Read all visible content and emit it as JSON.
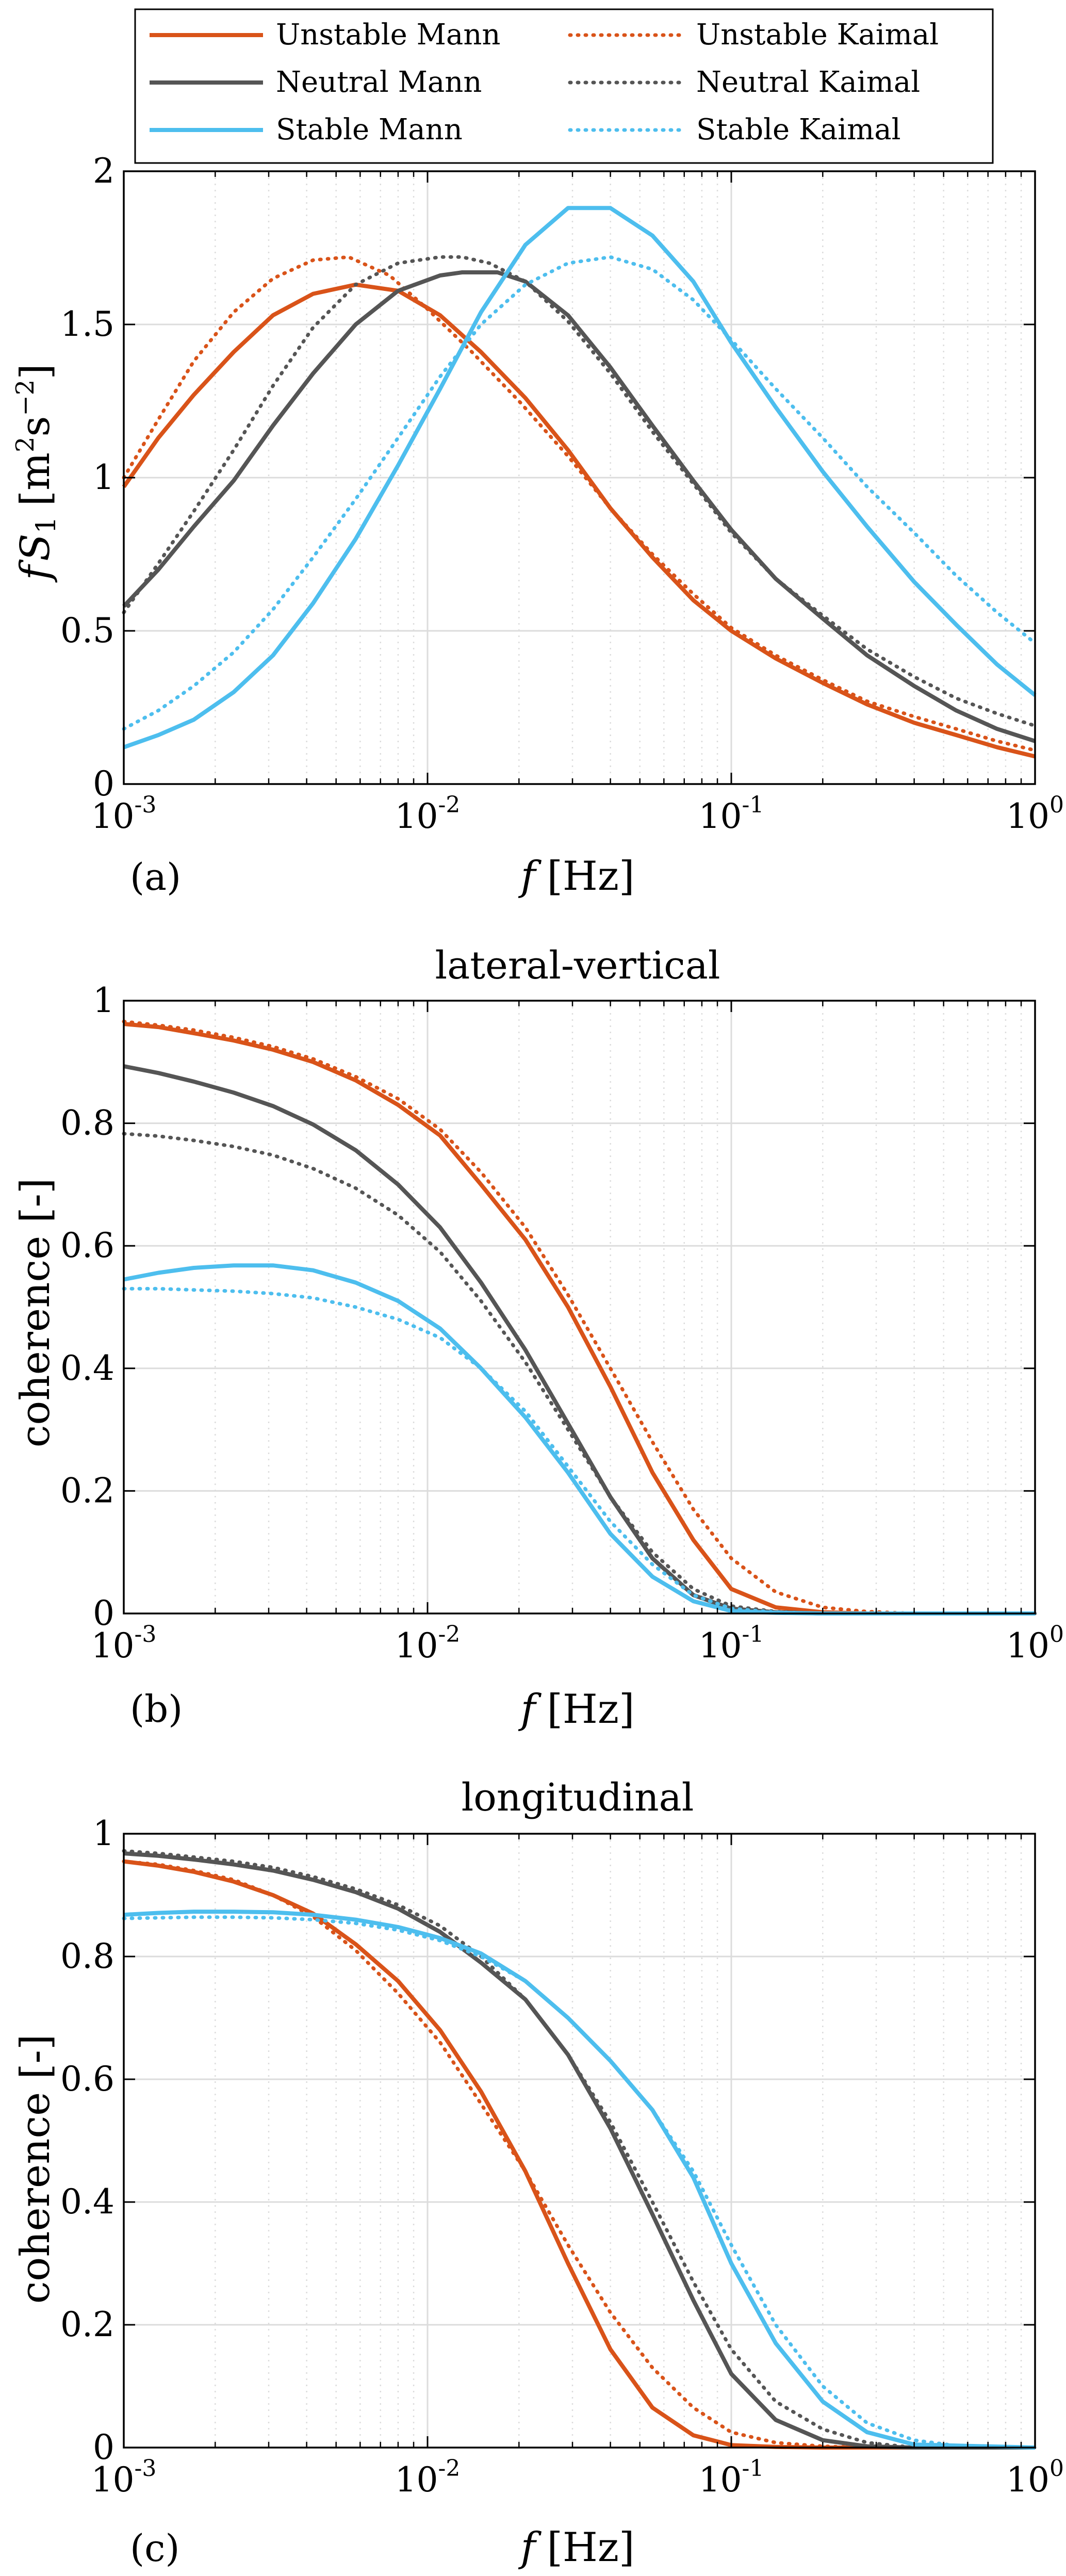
{
  "colors": {
    "unstable": "#d95319",
    "neutral": "#555555",
    "stable": "#4dbeee",
    "grid": "#dcdcdc",
    "axis": "#000000"
  },
  "legend": {
    "entries": [
      {
        "key": "unstable",
        "style": "solid",
        "label": "Unstable Mann"
      },
      {
        "key": "unstable",
        "style": "dotted",
        "label": "Unstable Kaimal"
      },
      {
        "key": "neutral",
        "style": "solid",
        "label": "Neutral Mann"
      },
      {
        "key": "neutral",
        "style": "dotted",
        "label": "Neutral Kaimal"
      },
      {
        "key": "stable",
        "style": "solid",
        "label": "Stable Mann"
      },
      {
        "key": "stable",
        "style": "dotted",
        "label": "Stable Kaimal"
      }
    ]
  },
  "chart_data": [
    {
      "id": "a",
      "type": "line",
      "title": "",
      "panel_label": "(a)",
      "xlabel": "f [Hz]",
      "ylabel": "fS1 [m2s−2]",
      "xscale": "log",
      "xlim": [
        0.001,
        1
      ],
      "ylim": [
        0,
        2
      ],
      "yticks": [
        0,
        0.5,
        1,
        1.5,
        2
      ],
      "ytick_labels": [
        "0",
        "0.5",
        "1",
        "1.5",
        "2"
      ],
      "xtick_exponents": [
        "-3",
        "-2",
        "-1",
        "0"
      ],
      "series": [
        {
          "name": "Unstable Mann",
          "key": "unstable",
          "style": "solid",
          "x": [
            0.001,
            0.0013,
            0.0017,
            0.0023,
            0.0031,
            0.0042,
            0.0058,
            0.008,
            0.011,
            0.015,
            0.021,
            0.029,
            0.04,
            0.055,
            0.075,
            0.1,
            0.14,
            0.2,
            0.28,
            0.4,
            0.55,
            0.75,
            1.0
          ],
          "y": [
            0.97,
            1.13,
            1.27,
            1.41,
            1.53,
            1.6,
            1.63,
            1.61,
            1.53,
            1.41,
            1.26,
            1.09,
            0.9,
            0.74,
            0.6,
            0.5,
            0.41,
            0.33,
            0.26,
            0.2,
            0.16,
            0.12,
            0.09
          ]
        },
        {
          "name": "Unstable Kaimal",
          "key": "unstable",
          "style": "dotted",
          "x": [
            0.001,
            0.0013,
            0.0017,
            0.0023,
            0.0031,
            0.0042,
            0.0055,
            0.0075,
            0.01,
            0.014,
            0.02,
            0.029,
            0.04,
            0.055,
            0.075,
            0.1,
            0.14,
            0.2,
            0.28,
            0.4,
            0.55,
            0.75,
            1.0
          ],
          "y": [
            1.0,
            1.19,
            1.38,
            1.54,
            1.65,
            1.71,
            1.72,
            1.66,
            1.55,
            1.41,
            1.25,
            1.07,
            0.9,
            0.75,
            0.62,
            0.51,
            0.42,
            0.34,
            0.27,
            0.22,
            0.18,
            0.14,
            0.11
          ]
        },
        {
          "name": "Neutral Mann",
          "key": "neutral",
          "style": "solid",
          "x": [
            0.001,
            0.0013,
            0.0017,
            0.0023,
            0.0031,
            0.0042,
            0.0058,
            0.008,
            0.011,
            0.013,
            0.017,
            0.021,
            0.029,
            0.04,
            0.055,
            0.075,
            0.1,
            0.14,
            0.2,
            0.28,
            0.4,
            0.55,
            0.75,
            1.0
          ],
          "y": [
            0.58,
            0.7,
            0.84,
            0.99,
            1.17,
            1.34,
            1.5,
            1.61,
            1.66,
            1.67,
            1.67,
            1.64,
            1.53,
            1.36,
            1.17,
            0.99,
            0.83,
            0.67,
            0.54,
            0.42,
            0.32,
            0.24,
            0.18,
            0.14
          ]
        },
        {
          "name": "Neutral Kaimal",
          "key": "neutral",
          "style": "dotted",
          "x": [
            0.001,
            0.0013,
            0.0017,
            0.0023,
            0.0031,
            0.0042,
            0.0058,
            0.008,
            0.011,
            0.013,
            0.016,
            0.021,
            0.029,
            0.04,
            0.055,
            0.075,
            0.1,
            0.14,
            0.2,
            0.28,
            0.4,
            0.55,
            0.75,
            1.0
          ],
          "y": [
            0.56,
            0.72,
            0.89,
            1.09,
            1.3,
            1.49,
            1.63,
            1.7,
            1.72,
            1.72,
            1.7,
            1.64,
            1.51,
            1.34,
            1.15,
            0.98,
            0.82,
            0.67,
            0.55,
            0.44,
            0.35,
            0.28,
            0.23,
            0.19
          ]
        },
        {
          "name": "Stable Mann",
          "key": "stable",
          "style": "solid",
          "x": [
            0.001,
            0.0013,
            0.0017,
            0.0023,
            0.0031,
            0.0042,
            0.0058,
            0.008,
            0.011,
            0.015,
            0.021,
            0.029,
            0.04,
            0.055,
            0.075,
            0.1,
            0.14,
            0.2,
            0.28,
            0.4,
            0.55,
            0.75,
            1.0
          ],
          "y": [
            0.12,
            0.16,
            0.21,
            0.3,
            0.42,
            0.59,
            0.8,
            1.04,
            1.29,
            1.54,
            1.76,
            1.88,
            1.88,
            1.79,
            1.64,
            1.44,
            1.23,
            1.02,
            0.84,
            0.66,
            0.52,
            0.39,
            0.29
          ]
        },
        {
          "name": "Stable Kaimal",
          "key": "stable",
          "style": "dotted",
          "x": [
            0.001,
            0.0013,
            0.0017,
            0.0023,
            0.0031,
            0.0042,
            0.0058,
            0.008,
            0.011,
            0.015,
            0.021,
            0.029,
            0.04,
            0.055,
            0.075,
            0.1,
            0.14,
            0.2,
            0.28,
            0.4,
            0.55,
            0.75,
            1.0
          ],
          "y": [
            0.18,
            0.24,
            0.32,
            0.43,
            0.57,
            0.74,
            0.93,
            1.13,
            1.33,
            1.5,
            1.63,
            1.7,
            1.72,
            1.68,
            1.58,
            1.45,
            1.29,
            1.13,
            0.97,
            0.82,
            0.68,
            0.56,
            0.46
          ]
        }
      ]
    },
    {
      "id": "b",
      "type": "line",
      "title": "lateral-vertical",
      "panel_label": "(b)",
      "xlabel": "f [Hz]",
      "ylabel": "coherence [-]",
      "xscale": "log",
      "xlim": [
        0.001,
        1
      ],
      "ylim": [
        0,
        1
      ],
      "yticks": [
        0,
        0.2,
        0.4,
        0.6,
        0.8,
        1
      ],
      "ytick_labels": [
        "0",
        "0.2",
        "0.4",
        "0.6",
        "0.8",
        "1"
      ],
      "xtick_exponents": [
        "-3",
        "-2",
        "-1",
        "0"
      ],
      "series": [
        {
          "name": "Unstable Mann",
          "key": "unstable",
          "style": "solid",
          "x": [
            0.001,
            0.0013,
            0.0017,
            0.0023,
            0.0031,
            0.0042,
            0.0058,
            0.008,
            0.011,
            0.015,
            0.021,
            0.029,
            0.04,
            0.055,
            0.075,
            0.1,
            0.14,
            0.2,
            0.28,
            0.4,
            1.0
          ],
          "y": [
            0.962,
            0.957,
            0.947,
            0.935,
            0.92,
            0.9,
            0.87,
            0.83,
            0.78,
            0.7,
            0.61,
            0.5,
            0.37,
            0.23,
            0.12,
            0.04,
            0.01,
            0.002,
            0.0,
            0.0,
            0.0
          ]
        },
        {
          "name": "Unstable Kaimal",
          "key": "unstable",
          "style": "dotted",
          "x": [
            0.001,
            0.0013,
            0.0017,
            0.0023,
            0.0031,
            0.0042,
            0.0058,
            0.008,
            0.011,
            0.015,
            0.021,
            0.029,
            0.04,
            0.055,
            0.075,
            0.1,
            0.14,
            0.2,
            0.28,
            0.4,
            1.0
          ],
          "y": [
            0.966,
            0.96,
            0.952,
            0.94,
            0.925,
            0.905,
            0.876,
            0.84,
            0.79,
            0.72,
            0.63,
            0.52,
            0.4,
            0.28,
            0.17,
            0.09,
            0.035,
            0.01,
            0.003,
            0.0,
            0.0
          ]
        },
        {
          "name": "Neutral Mann",
          "key": "neutral",
          "style": "solid",
          "x": [
            0.001,
            0.0013,
            0.0017,
            0.0023,
            0.0031,
            0.0042,
            0.0058,
            0.008,
            0.011,
            0.015,
            0.021,
            0.029,
            0.04,
            0.055,
            0.075,
            0.1,
            0.14,
            0.2,
            1.0
          ],
          "y": [
            0.893,
            0.882,
            0.868,
            0.85,
            0.828,
            0.798,
            0.756,
            0.7,
            0.63,
            0.54,
            0.43,
            0.31,
            0.19,
            0.09,
            0.03,
            0.008,
            0.002,
            0.0,
            0.0
          ]
        },
        {
          "name": "Neutral Kaimal",
          "key": "neutral",
          "style": "dotted",
          "x": [
            0.001,
            0.0013,
            0.0017,
            0.0023,
            0.0031,
            0.0042,
            0.0058,
            0.008,
            0.011,
            0.015,
            0.021,
            0.029,
            0.04,
            0.055,
            0.075,
            0.1,
            0.14,
            0.2,
            1.0
          ],
          "y": [
            0.783,
            0.779,
            0.772,
            0.762,
            0.748,
            0.726,
            0.694,
            0.65,
            0.59,
            0.51,
            0.41,
            0.3,
            0.19,
            0.1,
            0.04,
            0.012,
            0.003,
            0.0,
            0.0
          ]
        },
        {
          "name": "Stable Mann",
          "key": "stable",
          "style": "solid",
          "x": [
            0.001,
            0.0013,
            0.0017,
            0.0023,
            0.0031,
            0.0042,
            0.0058,
            0.008,
            0.011,
            0.015,
            0.021,
            0.029,
            0.04,
            0.055,
            0.075,
            0.1,
            0.14,
            0.2,
            1.0
          ],
          "y": [
            0.545,
            0.556,
            0.564,
            0.568,
            0.568,
            0.56,
            0.54,
            0.51,
            0.465,
            0.4,
            0.32,
            0.23,
            0.13,
            0.06,
            0.02,
            0.004,
            0.001,
            0.0,
            0.0
          ]
        },
        {
          "name": "Stable Kaimal",
          "key": "stable",
          "style": "dotted",
          "x": [
            0.001,
            0.0013,
            0.0017,
            0.0023,
            0.0031,
            0.0042,
            0.0058,
            0.008,
            0.011,
            0.015,
            0.021,
            0.029,
            0.04,
            0.055,
            0.075,
            0.1,
            0.14,
            0.2,
            1.0
          ],
          "y": [
            0.53,
            0.53,
            0.528,
            0.526,
            0.522,
            0.515,
            0.5,
            0.48,
            0.45,
            0.4,
            0.33,
            0.24,
            0.15,
            0.08,
            0.03,
            0.008,
            0.002,
            0.0,
            0.0
          ]
        }
      ]
    },
    {
      "id": "c",
      "type": "line",
      "title": "longitudinal",
      "panel_label": "(c)",
      "xlabel": "f [Hz]",
      "ylabel": "coherence [-]",
      "xscale": "log",
      "xlim": [
        0.001,
        1
      ],
      "ylim": [
        0,
        1
      ],
      "yticks": [
        0,
        0.2,
        0.4,
        0.6,
        0.8,
        1
      ],
      "ytick_labels": [
        "0",
        "0.2",
        "0.4",
        "0.6",
        "0.8",
        "1"
      ],
      "xtick_exponents": [
        "-3",
        "-2",
        "-1",
        "0"
      ],
      "series": [
        {
          "name": "Unstable Mann",
          "key": "unstable",
          "style": "solid",
          "x": [
            0.001,
            0.0013,
            0.0017,
            0.0023,
            0.0031,
            0.0042,
            0.0058,
            0.008,
            0.011,
            0.015,
            0.021,
            0.029,
            0.04,
            0.055,
            0.075,
            0.1,
            0.14,
            0.2,
            1.0
          ],
          "y": [
            0.955,
            0.948,
            0.938,
            0.922,
            0.9,
            0.87,
            0.82,
            0.76,
            0.68,
            0.58,
            0.45,
            0.3,
            0.16,
            0.065,
            0.02,
            0.004,
            0.001,
            0.0,
            0.0
          ]
        },
        {
          "name": "Unstable Kaimal",
          "key": "unstable",
          "style": "dotted",
          "x": [
            0.001,
            0.0013,
            0.0017,
            0.0023,
            0.0031,
            0.0042,
            0.0058,
            0.008,
            0.011,
            0.015,
            0.021,
            0.029,
            0.04,
            0.055,
            0.075,
            0.1,
            0.14,
            0.2,
            0.28,
            1.0
          ],
          "y": [
            0.955,
            0.95,
            0.94,
            0.925,
            0.9,
            0.865,
            0.81,
            0.74,
            0.66,
            0.56,
            0.45,
            0.33,
            0.22,
            0.13,
            0.065,
            0.025,
            0.008,
            0.002,
            0.0,
            0.0
          ]
        },
        {
          "name": "Neutral Mann",
          "key": "neutral",
          "style": "solid",
          "x": [
            0.001,
            0.0013,
            0.0017,
            0.0023,
            0.0031,
            0.0042,
            0.0058,
            0.008,
            0.011,
            0.015,
            0.021,
            0.029,
            0.04,
            0.055,
            0.075,
            0.1,
            0.14,
            0.2,
            0.28,
            0.4,
            1.0
          ],
          "y": [
            0.968,
            0.964,
            0.958,
            0.95,
            0.94,
            0.925,
            0.905,
            0.878,
            0.84,
            0.79,
            0.73,
            0.64,
            0.52,
            0.38,
            0.24,
            0.12,
            0.045,
            0.012,
            0.002,
            0.0,
            0.0
          ]
        },
        {
          "name": "Neutral Kaimal",
          "key": "neutral",
          "style": "dotted",
          "x": [
            0.001,
            0.0013,
            0.0017,
            0.0023,
            0.0031,
            0.0042,
            0.0058,
            0.008,
            0.011,
            0.015,
            0.021,
            0.029,
            0.04,
            0.055,
            0.075,
            0.1,
            0.14,
            0.2,
            0.28,
            0.4,
            1.0
          ],
          "y": [
            0.972,
            0.968,
            0.962,
            0.955,
            0.945,
            0.93,
            0.91,
            0.884,
            0.85,
            0.8,
            0.73,
            0.64,
            0.53,
            0.4,
            0.27,
            0.16,
            0.075,
            0.03,
            0.008,
            0.0,
            0.0
          ]
        },
        {
          "name": "Stable Mann",
          "key": "stable",
          "style": "solid",
          "x": [
            0.001,
            0.0013,
            0.0017,
            0.0023,
            0.0031,
            0.0042,
            0.0058,
            0.008,
            0.011,
            0.015,
            0.021,
            0.029,
            0.04,
            0.055,
            0.075,
            0.1,
            0.14,
            0.2,
            0.28,
            0.4,
            1.0
          ],
          "y": [
            0.868,
            0.871,
            0.873,
            0.873,
            0.872,
            0.868,
            0.86,
            0.848,
            0.83,
            0.805,
            0.76,
            0.7,
            0.63,
            0.55,
            0.44,
            0.3,
            0.17,
            0.075,
            0.025,
            0.005,
            0.0
          ]
        },
        {
          "name": "Stable Kaimal",
          "key": "stable",
          "style": "dotted",
          "x": [
            0.001,
            0.0013,
            0.0017,
            0.0023,
            0.0031,
            0.0042,
            0.0058,
            0.008,
            0.011,
            0.015,
            0.021,
            0.029,
            0.04,
            0.055,
            0.075,
            0.1,
            0.14,
            0.2,
            0.28,
            0.4,
            0.55,
            1.0
          ],
          "y": [
            0.862,
            0.863,
            0.864,
            0.864,
            0.863,
            0.86,
            0.854,
            0.843,
            0.826,
            0.8,
            0.76,
            0.7,
            0.63,
            0.55,
            0.45,
            0.33,
            0.2,
            0.1,
            0.04,
            0.012,
            0.003,
            0.0
          ]
        }
      ]
    }
  ]
}
